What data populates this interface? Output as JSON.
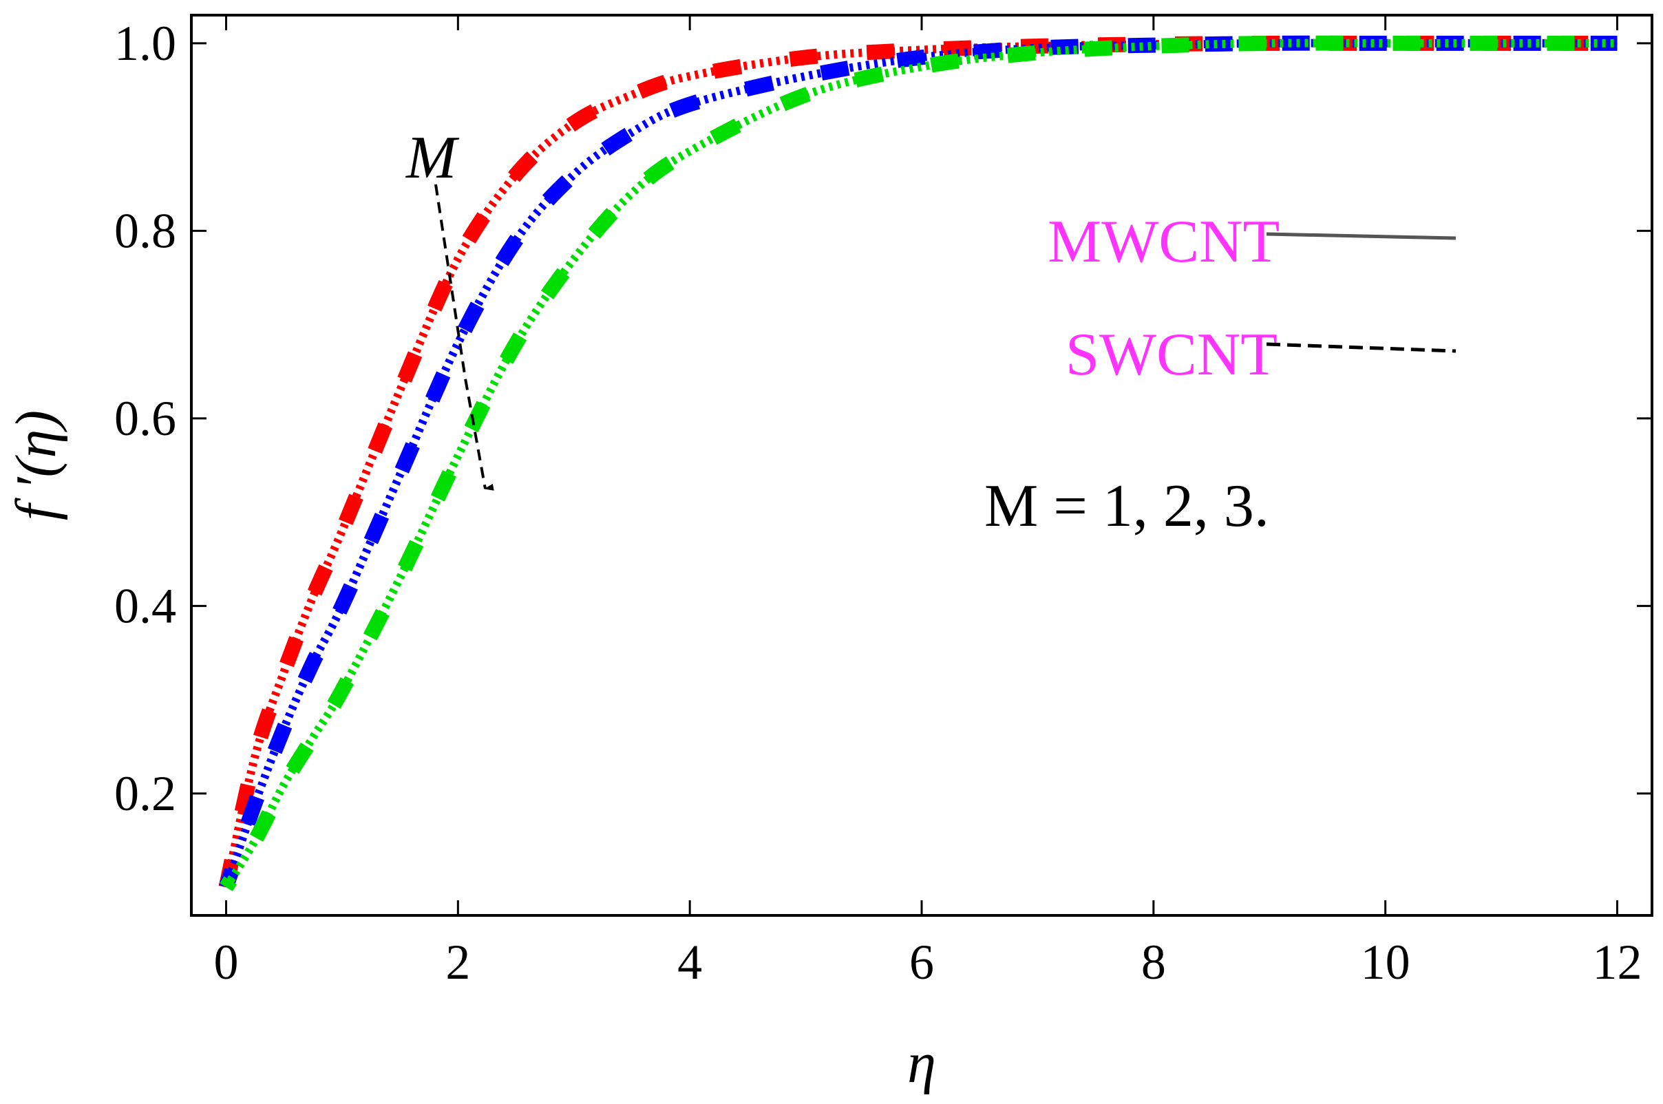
{
  "chart_data": {
    "type": "line",
    "title": "",
    "xlabel": "η",
    "ylabel": "f ′(η)",
    "xlim": [
      -0.3,
      12.3
    ],
    "ylim": [
      0.07,
      1.03
    ],
    "xticks": [
      0,
      2,
      4,
      6,
      8,
      10,
      12
    ],
    "xtick_labels": [
      "0",
      "2",
      "4",
      "6",
      "8",
      "10",
      "12"
    ],
    "yticks": [
      0.2,
      0.4,
      0.6,
      0.8,
      1.0
    ],
    "ytick_labels": [
      "0.2",
      "0.4",
      "0.6",
      "0.8",
      "1.0"
    ],
    "grid": false,
    "x": [
      0,
      0.25,
      0.5,
      0.75,
      1,
      1.5,
      2,
      2.5,
      3,
      3.5,
      4,
      5,
      6,
      7,
      8,
      9,
      10,
      11,
      12
    ],
    "series": [
      {
        "name": "M = 1",
        "color": "#ff0000",
        "style": "MWCNT + SWCNT",
        "values": [
          0.1,
          0.24,
          0.33,
          0.41,
          0.48,
          0.63,
          0.77,
          0.86,
          0.915,
          0.945,
          0.965,
          0.985,
          0.993,
          0.997,
          0.999,
          1.0,
          1.0,
          1.0,
          1.0
        ]
      },
      {
        "name": "M = 2",
        "color": "#0000ff",
        "style": "MWCNT + SWCNT",
        "values": [
          0.1,
          0.19,
          0.27,
          0.34,
          0.4,
          0.54,
          0.68,
          0.79,
          0.86,
          0.905,
          0.935,
          0.965,
          0.985,
          0.995,
          0.998,
          1.0,
          1.0,
          1.0,
          1.0
        ]
      },
      {
        "name": "M = 3",
        "color": "#00dd00",
        "style": "MWCNT + SWCNT",
        "values": [
          0.1,
          0.15,
          0.21,
          0.26,
          0.31,
          0.43,
          0.56,
          0.68,
          0.77,
          0.84,
          0.885,
          0.945,
          0.975,
          0.99,
          0.997,
          1.0,
          1.0,
          1.0,
          1.0
        ]
      }
    ],
    "legend": {
      "placement": "top-right",
      "entries": [
        {
          "label": "MWCNT",
          "line_style": "solid",
          "color": "#ff33ff"
        },
        {
          "label": "SWCNT",
          "line_style": "dashed",
          "color": "#ff33ff"
        }
      ]
    },
    "annotations": [
      {
        "text": "M",
        "note": "arrow pointing down across curves"
      },
      {
        "text": "M = 1, 2, 3."
      }
    ]
  }
}
